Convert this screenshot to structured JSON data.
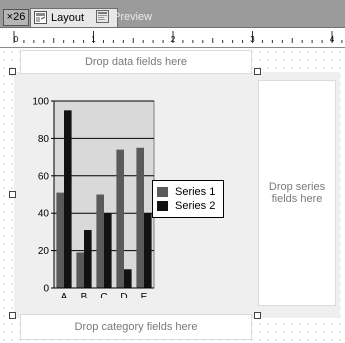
{
  "tabs": {
    "close_label": "×26",
    "layout_label": "Layout",
    "preview_label": "Preview",
    "layout_icon": "layout-icon",
    "preview_icon": "preview-icon"
  },
  "ruler": {
    "numbers": [
      "0",
      "1",
      "2",
      "3",
      "4"
    ]
  },
  "dropzones": {
    "data_fields": "Drop data fields here",
    "series_fields": "Drop series fields here",
    "category_fields": "Drop category fields here"
  },
  "colors": {
    "series1": "#5a5a5a",
    "series2": "#111111",
    "plot_background": "#d9d9d9",
    "panel_background": "#efefef"
  },
  "chart_data": {
    "type": "bar",
    "categories": [
      "A",
      "B",
      "C",
      "D",
      "E"
    ],
    "series": [
      {
        "name": "Series 1",
        "values": [
          51,
          19,
          50,
          74,
          75
        ]
      },
      {
        "name": "Series 2",
        "values": [
          95,
          31,
          40,
          10,
          40
        ]
      }
    ],
    "y_ticks": [
      "0",
      "20",
      "40",
      "60",
      "80",
      "100"
    ],
    "ylim": [
      0,
      100
    ],
    "grid": true,
    "legend_position": "right"
  }
}
